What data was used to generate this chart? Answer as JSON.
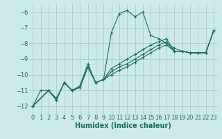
{
  "xlabel": "Humidex (Indice chaleur)",
  "bg_color": "#cceaea",
  "grid_color": "#aacccc",
  "line_color": "#1a6b5a",
  "xlim": [
    -0.5,
    23.5
  ],
  "ylim": [
    -12.5,
    -5.5
  ],
  "yticks": [
    -12,
    -11,
    -10,
    -9,
    -8,
    -7,
    -6
  ],
  "xticks": [
    0,
    1,
    2,
    3,
    4,
    5,
    6,
    7,
    8,
    9,
    10,
    11,
    12,
    13,
    14,
    15,
    16,
    17,
    18,
    19,
    20,
    21,
    22,
    23
  ],
  "series1_x": [
    0,
    1,
    2,
    3,
    4,
    5,
    6,
    7,
    8,
    9,
    10,
    11,
    12,
    13,
    14,
    15,
    16,
    17,
    18,
    19,
    20,
    21,
    22,
    23
  ],
  "series1_y": [
    -12.0,
    -11.0,
    -11.0,
    -11.5,
    -10.5,
    -11.0,
    -10.7,
    -9.3,
    -10.5,
    -10.3,
    -7.3,
    -6.1,
    -5.9,
    -6.3,
    -6.0,
    -7.5,
    -7.7,
    -8.0,
    -8.3,
    -8.5,
    -8.6,
    -8.6,
    -8.6,
    -7.2
  ],
  "series2_x": [
    0,
    2,
    3,
    4,
    5,
    6,
    7,
    8,
    9,
    10,
    11,
    12,
    13,
    14,
    15,
    16,
    17,
    18,
    19,
    20,
    21,
    22,
    23
  ],
  "series2_y": [
    -12.0,
    -11.0,
    -11.6,
    -10.5,
    -11.0,
    -10.8,
    -9.5,
    -10.5,
    -10.3,
    -9.6,
    -9.3,
    -9.0,
    -8.7,
    -8.4,
    -8.1,
    -7.9,
    -7.7,
    -8.5,
    -8.5,
    -8.6,
    -8.6,
    -8.6,
    -7.2
  ],
  "series3_x": [
    0,
    2,
    3,
    4,
    5,
    6,
    7,
    8,
    9,
    10,
    11,
    12,
    13,
    14,
    15,
    16,
    17,
    18,
    19,
    20,
    21,
    22,
    23
  ],
  "series3_y": [
    -12.0,
    -11.0,
    -11.6,
    -10.5,
    -11.0,
    -10.8,
    -9.5,
    -10.5,
    -10.3,
    -9.8,
    -9.5,
    -9.3,
    -9.0,
    -8.7,
    -8.4,
    -8.1,
    -7.9,
    -8.5,
    -8.5,
    -8.6,
    -8.6,
    -8.6,
    -7.2
  ],
  "series4_x": [
    0,
    2,
    3,
    4,
    5,
    6,
    7,
    8,
    9,
    10,
    11,
    12,
    13,
    14,
    15,
    16,
    17,
    18,
    19,
    20,
    21,
    22,
    23
  ],
  "series4_y": [
    -12.0,
    -11.0,
    -11.6,
    -10.5,
    -11.0,
    -10.8,
    -9.5,
    -10.5,
    -10.3,
    -10.0,
    -9.7,
    -9.5,
    -9.2,
    -8.9,
    -8.6,
    -8.3,
    -8.1,
    -8.5,
    -8.5,
    -8.6,
    -8.6,
    -8.6,
    -7.2
  ],
  "xlabel_fontsize": 7,
  "tick_fontsize": 6,
  "lw": 0.8,
  "ms": 2.5
}
